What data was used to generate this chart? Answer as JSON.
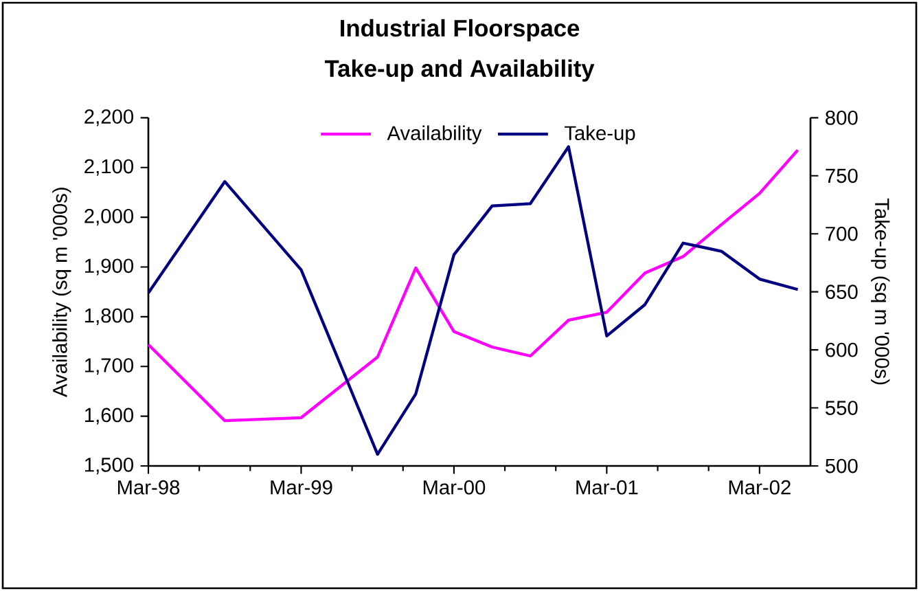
{
  "chart_data": {
    "type": "line",
    "title": "Industrial Floorspace",
    "subtitle": "Take-up and Availability",
    "ylabel": "Availability (sq m '000s)",
    "y2label": "Take-up (sq m '000s)",
    "x": [
      "1998-03",
      "1998-09",
      "1999-03",
      "1999-09",
      "1999-12",
      "2000-03",
      "2000-06",
      "2000-09",
      "2000-12",
      "2001-03",
      "2001-06",
      "2001-09",
      "2001-12",
      "2002-03",
      "2002-06"
    ],
    "xlim": [
      "1998-03",
      "2002-07"
    ],
    "xticks": [
      {
        "value": "1998-03",
        "label": "Mar-98"
      },
      {
        "value": "1999-03",
        "label": "Mar-99"
      },
      {
        "value": "2000-03",
        "label": "Mar-00"
      },
      {
        "value": "2001-03",
        "label": "Mar-01"
      },
      {
        "value": "2002-03",
        "label": "Mar-02"
      }
    ],
    "ylim": [
      1500,
      2200
    ],
    "yticks": [
      {
        "value": 1500,
        "label": "1,500"
      },
      {
        "value": 1600,
        "label": "1,600"
      },
      {
        "value": 1700,
        "label": "1,700"
      },
      {
        "value": 1800,
        "label": "1,800"
      },
      {
        "value": 1900,
        "label": "1,900"
      },
      {
        "value": 2000,
        "label": "2,000"
      },
      {
        "value": 2100,
        "label": "2,100"
      },
      {
        "value": 2200,
        "label": "2,200"
      }
    ],
    "y2lim": [
      500,
      800
    ],
    "y2ticks": [
      500,
      550,
      600,
      650,
      700,
      750,
      800
    ],
    "legend": "top",
    "series": [
      {
        "name": "Availability",
        "color": "#ff00ff",
        "values": [
          1744,
          1591,
          1597,
          1719,
          1898,
          1770,
          1739,
          1721,
          1793,
          1809,
          1888,
          1921,
          1985,
          2048,
          2135
        ]
      },
      {
        "name": "Take-up",
        "color": "#000080",
        "axis": "y2",
        "values": [
          649,
          745,
          669,
          510,
          562,
          682,
          724,
          726,
          775,
          612,
          639,
          692,
          685,
          661,
          652
        ]
      }
    ]
  }
}
